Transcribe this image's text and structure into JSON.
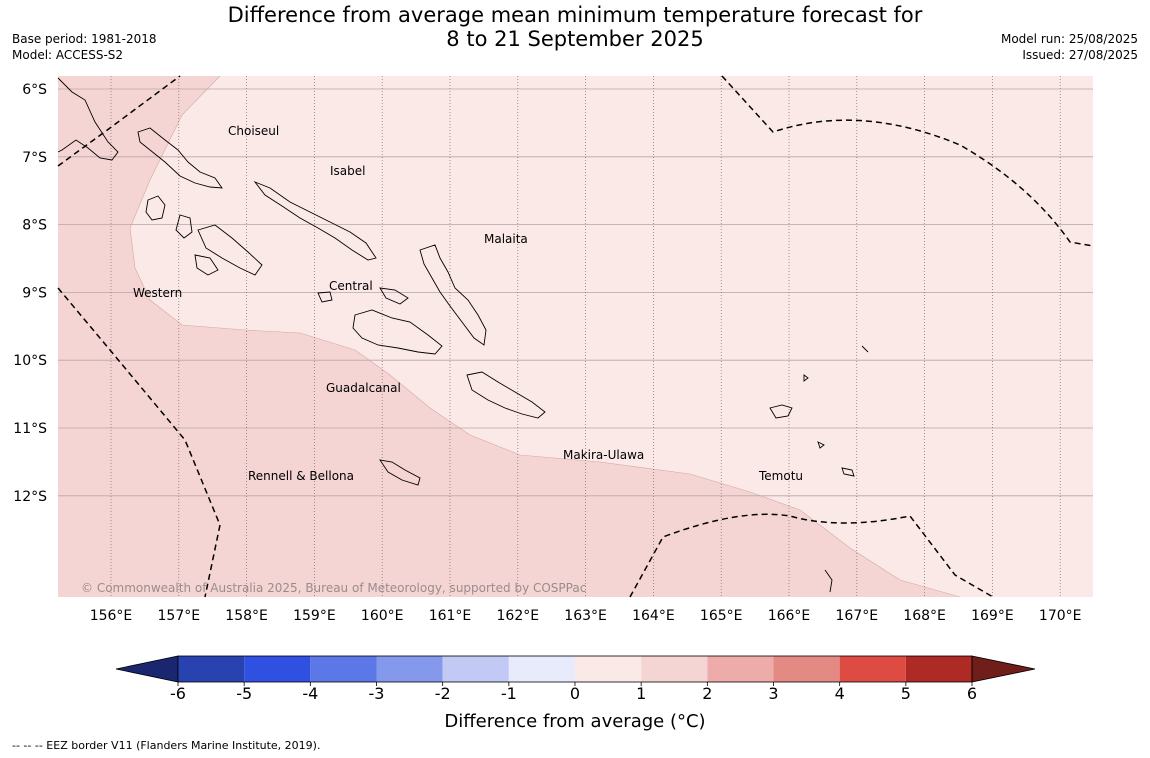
{
  "header": {
    "title_line1": "Difference from average mean minimum temperature forecast for",
    "title_line2": "8 to 21 September 2025",
    "base_period": "Base period: 1981-2018",
    "model": "Model: ACCESS-S2",
    "model_run": "Model run: 25/08/2025",
    "issued": "Issued: 27/08/2025"
  },
  "map": {
    "lat_labels": [
      "6°S",
      "7°S",
      "8°S",
      "9°S",
      "10°S",
      "11°S",
      "12°S"
    ],
    "lon_labels": [
      "156°E",
      "157°E",
      "158°E",
      "159°E",
      "160°E",
      "161°E",
      "162°E",
      "163°E",
      "164°E",
      "165°E",
      "166°E",
      "167°E",
      "168°E",
      "169°E",
      "170°E"
    ],
    "region_labels": [
      "Choiseul",
      "Isabel",
      "Malaita",
      "Central",
      "Western",
      "Guadalcanal",
      "Makira-Ulawa",
      "Temotu",
      "Rennell & Bellona"
    ],
    "copyright": "© Commonwealth of Australia 2025, Bureau of Meteorology, supported by COSPPac",
    "fill_colors": {
      "zero_to_one": "#fbe9e8",
      "one_to_two": "#f5d5d3"
    }
  },
  "colorbar": {
    "ticks": [
      "-6",
      "-5",
      "-4",
      "-3",
      "-2",
      "-1",
      "0",
      "1",
      "2",
      "3",
      "4",
      "5",
      "6"
    ],
    "colors": [
      "#1a2770",
      "#2843b0",
      "#2f50e0",
      "#5b78e6",
      "#8599ec",
      "#c1c9f4",
      "#e8ebfb",
      "#fbe9e8",
      "#f5d5d3",
      "#edacaa",
      "#e48a84",
      "#dd4b42",
      "#ae2a24",
      "#701e1a"
    ],
    "label": "Difference from average (°C)"
  },
  "footer": {
    "eez_note": "--  --  -- EEZ border V11 (Flanders Marine Institute, 2019)."
  }
}
